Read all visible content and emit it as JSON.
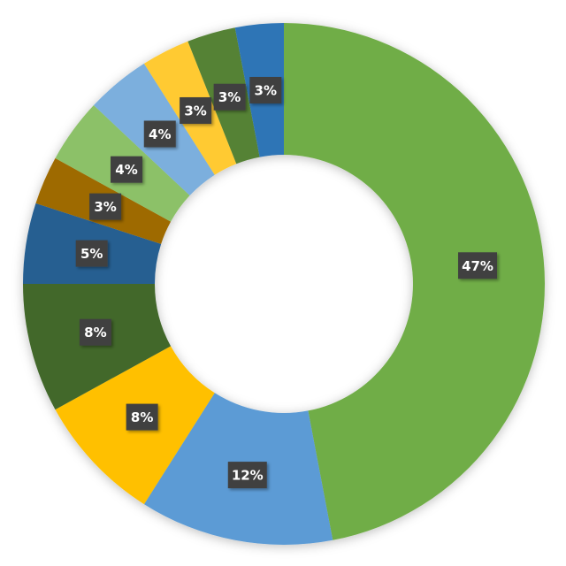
{
  "chart_data": {
    "type": "pie",
    "variant": "donut",
    "title": "",
    "start": "top, clockwise",
    "legend": "none",
    "slices": [
      {
        "value": 47,
        "label": "47%",
        "color": "#70AD47"
      },
      {
        "value": 12,
        "label": "12%",
        "color": "#5B9BD5"
      },
      {
        "value": 8,
        "label": "8%",
        "color": "#FFC000"
      },
      {
        "value": 8,
        "label": "8%",
        "color": "#43682B"
      },
      {
        "value": 5,
        "label": "5%",
        "color": "#255E91"
      },
      {
        "value": 3,
        "label": "3%",
        "color": "#9E6A00"
      },
      {
        "value": 4,
        "label": "4%",
        "color": "#8CC168"
      },
      {
        "value": 4,
        "label": "4%",
        "color": "#7CAFDD"
      },
      {
        "value": 3,
        "label": "3%",
        "color": "#FFCA31"
      },
      {
        "value": 3,
        "label": "3%",
        "color": "#548235"
      },
      {
        "value": 3,
        "label": "3%",
        "color": "#2E75B6"
      }
    ],
    "data_label_style": {
      "background": "#404040",
      "text_color": "#FFFFFF"
    }
  }
}
